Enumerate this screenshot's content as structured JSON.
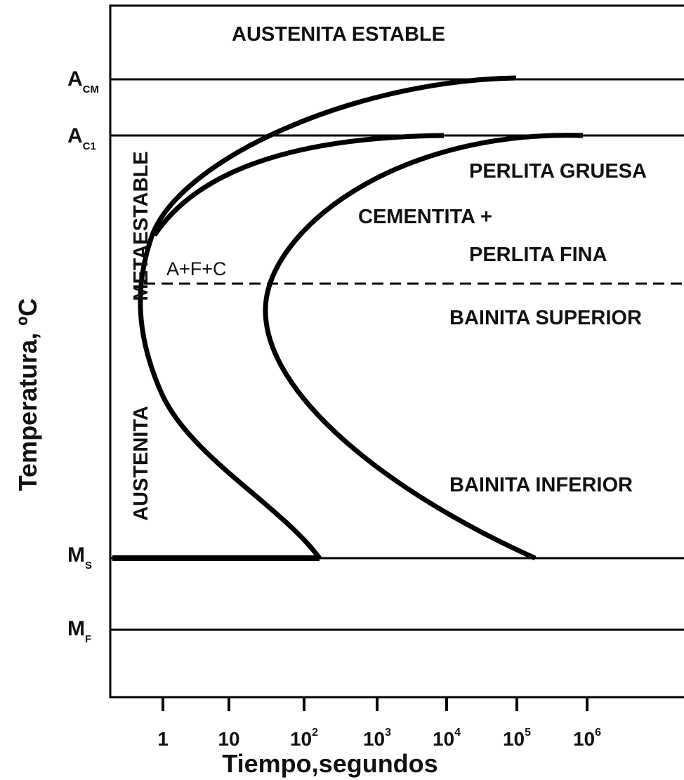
{
  "diagram": {
    "y_axis_title": "Temperatura, ºC",
    "x_axis_title": "Tiempo,segundos",
    "levels": [
      {
        "main": "A",
        "sub": "CM"
      },
      {
        "main": "A",
        "sub": "C1"
      },
      {
        "main": "M",
        "sub": "S"
      },
      {
        "main": "M",
        "sub": "F"
      }
    ],
    "x_ticks": [
      {
        "base": "1"
      },
      {
        "base": "10"
      },
      {
        "base": "10",
        "exp": "2"
      },
      {
        "base": "10",
        "exp": "3"
      },
      {
        "base": "10",
        "exp": "4"
      },
      {
        "base": "10",
        "exp": "5"
      },
      {
        "base": "10",
        "exp": "6"
      }
    ],
    "regions": {
      "stable": "AUSTENITA ESTABLE",
      "coarse_pearlite": "PERLITA GRUESA",
      "cementite": "CEMENTITA +",
      "fine_pearlite": "PERLITA FINA",
      "afc": "A+F+C",
      "upper_bainite": "BAINITA SUPERIOR",
      "lower_bainite": "BAINITA INFERIOR",
      "metastable": "METAESTABLE",
      "austenite": "AUSTENITA"
    }
  }
}
